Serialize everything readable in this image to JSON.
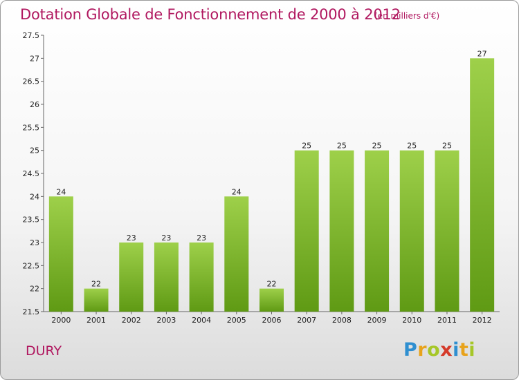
{
  "header": {
    "title": "Dotation Globale de Fonctionnement de 2000 à 2012",
    "subtitle": "(en milliers d'€)"
  },
  "footer": {
    "commune": "DURY",
    "logo": [
      "P",
      "r",
      "o",
      "x",
      "i",
      "t",
      "i"
    ]
  },
  "colors": {
    "title": "#b0175f",
    "bar_light": "#9ed04a",
    "bar_dark": "#5f9a14",
    "axis": "#666666"
  },
  "chart_data": {
    "type": "bar",
    "categories": [
      "2000",
      "2001",
      "2002",
      "2003",
      "2004",
      "2005",
      "2006",
      "2007",
      "2008",
      "2009",
      "2010",
      "2011",
      "2012"
    ],
    "values": [
      24,
      22,
      23,
      23,
      23,
      24,
      22,
      25,
      25,
      25,
      25,
      25,
      27
    ],
    "ylim": [
      21.5,
      27.5
    ],
    "yticks": [
      "21.5",
      "22",
      "22.5",
      "23",
      "23.5",
      "24",
      "24.5",
      "25",
      "25.5",
      "26",
      "26.5",
      "27",
      "27.5"
    ],
    "grid": false,
    "legend": "none"
  }
}
